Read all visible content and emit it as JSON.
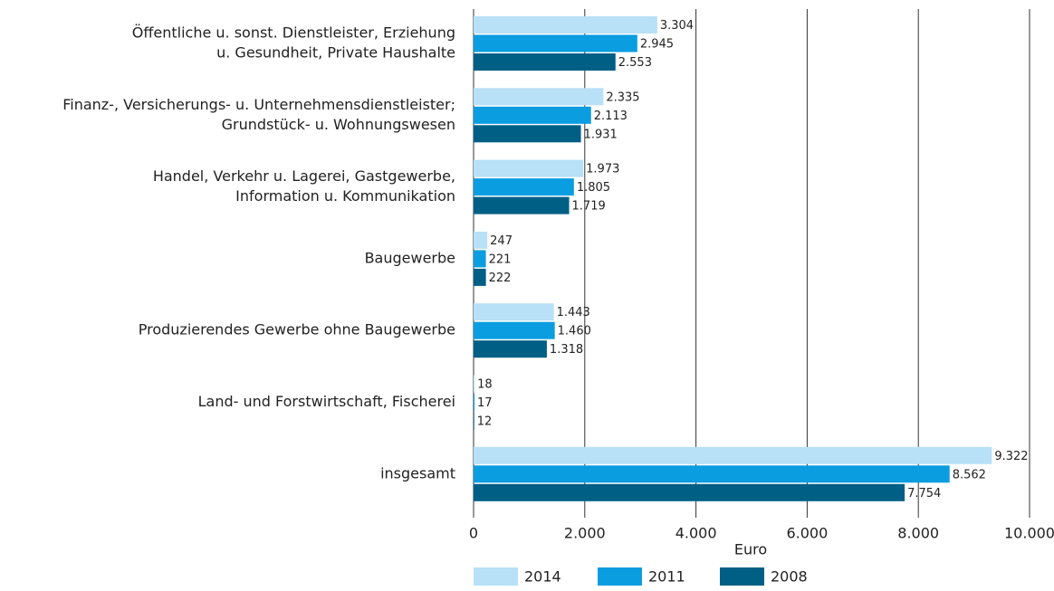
{
  "chart_data": {
    "type": "bar",
    "orientation": "horizontal",
    "x_label": "Euro",
    "categories": [
      [
        "Öffentliche u. sonst. Dienstleister, Erziehung",
        "u. Gesundheit, Private Haushalte"
      ],
      [
        "Finanz-, Versicherungs- u. Unternehmensdienstleister;",
        "Grundstück- u. Wohnungswesen"
      ],
      [
        "Handel, Verkehr u. Lagerei, Gastgewerbe,",
        "Information u. Kommunikation"
      ],
      [
        "Baugewerbe"
      ],
      [
        "Produzierendes Gewerbe ohne Baugewerbe"
      ],
      [
        "Land- und Forstwirtschaft, Fischerei"
      ],
      [
        "insgesamt"
      ]
    ],
    "series": [
      {
        "name": "2014",
        "color": "#b8e0f7",
        "values": [
          3304,
          2335,
          1973,
          247,
          1443,
          18,
          9322
        ],
        "value_labels": [
          "3.304",
          "2.335",
          "1.973",
          "247",
          "1.443",
          "18",
          "9.322"
        ]
      },
      {
        "name": "2011",
        "color": "#0a9de0",
        "values": [
          2945,
          2113,
          1805,
          221,
          1460,
          17,
          8562
        ],
        "value_labels": [
          "2.945",
          "2.113",
          "1.805",
          "221",
          "1.460",
          "17",
          "8.562"
        ]
      },
      {
        "name": "2008",
        "color": "#005f85",
        "values": [
          2553,
          1931,
          1719,
          222,
          1318,
          12,
          7754
        ],
        "value_labels": [
          "2.553",
          "1.931",
          "1.719",
          "222",
          "1.318",
          "12",
          "7.754"
        ]
      }
    ],
    "xlim": [
      0,
      10000
    ],
    "xticks": [
      0,
      {
        "value": 2000,
        "label": "2.000"
      },
      {
        "value": 4000,
        "label": "4.000"
      },
      {
        "value": 6000,
        "label": "6.000"
      },
      {
        "value": 8000,
        "label": "8.000"
      },
      {
        "value": 10000,
        "label": "10.000"
      }
    ],
    "grid": true,
    "legend": "bottom"
  }
}
